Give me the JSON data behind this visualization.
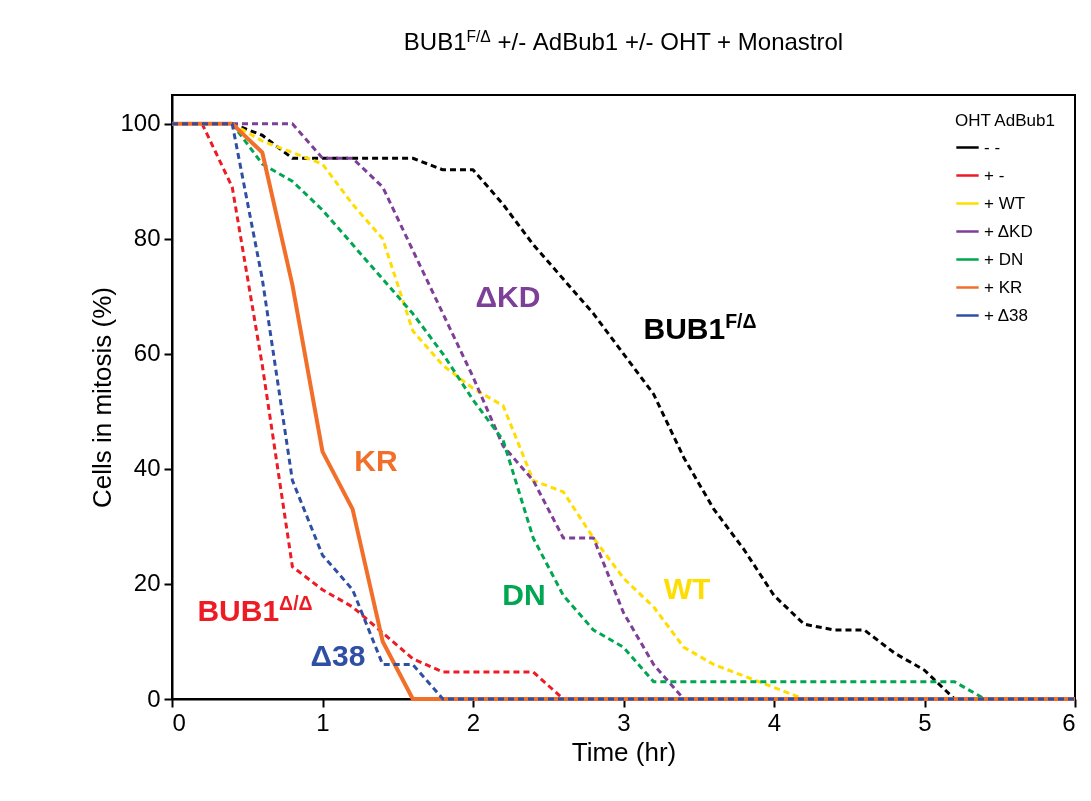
{
  "chart_data": {
    "type": "line",
    "title": "BUB1$^{F/Δ}$ +/- AdBub1 +/- OHT + Monastrol",
    "xlabel": "Time (hr)",
    "ylabel": "Cells in mitosis (%)",
    "legend_title": "OHT AdBub1",
    "xlim": [
      0,
      6
    ],
    "ylim": [
      0,
      105
    ],
    "xticks": [
      0,
      1,
      2,
      3,
      4,
      5,
      6
    ],
    "yticks": [
      0,
      20,
      40,
      60,
      80,
      100
    ],
    "grid": false,
    "legend": "top right",
    "marker": "none",
    "series": [
      {
        "name": "- -",
        "color": "#000000",
        "line_style": "dashed",
        "x": [
          0,
          0.2,
          0.4,
          0.6,
          0.8,
          1,
          1.2,
          1.4,
          1.6,
          1.8,
          2,
          2.2,
          2.4,
          2.6,
          2.8,
          3,
          3.2,
          3.4,
          3.6,
          3.8,
          4,
          4.2,
          4.4,
          4.6,
          4.8,
          5,
          5.2,
          6
        ],
        "values": [
          100,
          100,
          100,
          98,
          94,
          94,
          94,
          94,
          94,
          92,
          92,
          86,
          79,
          73,
          67,
          60,
          53,
          42,
          33,
          26,
          18,
          13,
          12,
          12,
          8,
          5,
          0,
          0
        ]
      },
      {
        "name": "+ -",
        "color": "#ed1c24",
        "line_style": "dashed",
        "x": [
          0,
          0.2,
          0.4,
          0.6,
          0.8,
          1,
          1.2,
          1.4,
          1.6,
          1.8,
          2,
          2.2,
          2.4,
          2.6,
          6
        ],
        "values": [
          100,
          100,
          89,
          58,
          23,
          19,
          16,
          11.5,
          7,
          4.7,
          4.7,
          4.7,
          4.7,
          0,
          0
        ]
      },
      {
        "name": "+ WT",
        "color": "#ffdd00",
        "line_style": "dashed",
        "x": [
          0,
          0.2,
          0.4,
          0.6,
          0.8,
          1,
          1.2,
          1.4,
          1.6,
          1.8,
          2,
          2.2,
          2.4,
          2.6,
          2.8,
          3,
          3.2,
          3.4,
          3.6,
          3.8,
          4,
          4.2,
          6
        ],
        "values": [
          100,
          100,
          100,
          97,
          95,
          93,
          86,
          80,
          64,
          58,
          54,
          51,
          38,
          36,
          28,
          21,
          16,
          9,
          6,
          4,
          2,
          0,
          0
        ]
      },
      {
        "name": "+ ΔKD",
        "color": "#7d3f98",
        "line_style": "dashed",
        "x": [
          0,
          0.2,
          0.4,
          0.6,
          0.8,
          1,
          1.2,
          1.4,
          1.6,
          1.8,
          2,
          2.2,
          2.4,
          2.6,
          2.8,
          3,
          3.2,
          3.4,
          6
        ],
        "values": [
          100,
          100,
          100,
          100,
          100,
          94,
          94,
          89,
          78,
          67,
          56,
          44,
          38,
          28,
          28,
          15,
          6,
          0,
          0
        ]
      },
      {
        "name": "+ DN",
        "color": "#00a651",
        "line_style": "dashed",
        "x": [
          0,
          0.2,
          0.4,
          0.6,
          0.8,
          1,
          1.2,
          1.4,
          1.6,
          1.8,
          2,
          2.2,
          2.4,
          2.6,
          2.8,
          3,
          3.2,
          5.2,
          5.4,
          6
        ],
        "values": [
          100,
          100,
          100,
          93,
          90,
          85,
          79,
          73,
          67,
          60,
          52,
          45,
          28,
          18,
          12,
          9,
          3,
          3,
          0,
          0
        ]
      },
      {
        "name": "+ KR",
        "color": "#f26f2a",
        "line_style": "solid",
        "x": [
          0,
          0.2,
          0.4,
          0.6,
          0.8,
          1,
          1.2,
          1.4,
          1.6,
          6
        ],
        "values": [
          100,
          100,
          100,
          95,
          72,
          43,
          33,
          10,
          0,
          0
        ]
      },
      {
        "name": "+ Δ38",
        "color": "#2e4fa3",
        "line_style": "dashed",
        "x": [
          0,
          0.2,
          0.4,
          0.6,
          0.8,
          1,
          1.2,
          1.4,
          1.6,
          1.8,
          6
        ],
        "values": [
          100,
          100,
          100,
          73,
          38,
          25,
          19,
          6,
          6,
          0,
          0
        ]
      }
    ],
    "annotations": [
      "BUB1$^{F/Δ}$",
      "BUB1$^{Δ/Δ}$",
      "WT",
      "ΔKD",
      "DN",
      "KR",
      "Δ38"
    ]
  }
}
